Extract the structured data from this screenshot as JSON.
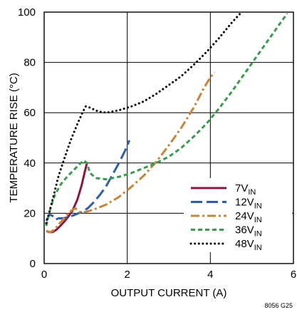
{
  "chart_data": {
    "type": "line",
    "title": "",
    "xlabel": "OUTPUT CURRENT (A)",
    "ylabel": "TEMPERATURE RISE (°C)",
    "xlim": [
      0,
      6
    ],
    "ylim": [
      0,
      100
    ],
    "x_ticks": [
      "0",
      "2",
      "4",
      "6"
    ],
    "y_ticks": [
      "0",
      "20",
      "40",
      "60",
      "80",
      "100"
    ],
    "grid": true,
    "legend_position": "lower-right",
    "footnote": "8056 G25",
    "series": [
      {
        "name": "7V",
        "name_sub": "IN",
        "color": "#8b1a3a",
        "dash": "solid",
        "points": [
          [
            0.05,
            13
          ],
          [
            0.12,
            12.5
          ],
          [
            0.2,
            12.5
          ],
          [
            0.3,
            13.5
          ],
          [
            0.42,
            15.5
          ],
          [
            0.55,
            18
          ],
          [
            0.68,
            21
          ],
          [
            0.8,
            25.5
          ],
          [
            0.9,
            31
          ],
          [
            0.97,
            36
          ],
          [
            1.03,
            40
          ]
        ]
      },
      {
        "name": "12V",
        "name_sub": "IN",
        "color": "#2e5fae",
        "dash": "long",
        "points": [
          [
            0.05,
            17
          ],
          [
            0.13,
            19.5
          ],
          [
            0.2,
            19
          ],
          [
            0.27,
            17.5
          ],
          [
            0.35,
            18
          ],
          [
            0.45,
            18
          ],
          [
            0.6,
            18.5
          ],
          [
            0.75,
            19.5
          ],
          [
            0.9,
            20.5
          ],
          [
            1.05,
            22
          ],
          [
            1.2,
            24.5
          ],
          [
            1.35,
            27.5
          ],
          [
            1.5,
            31
          ],
          [
            1.65,
            35.5
          ],
          [
            1.8,
            40
          ],
          [
            1.95,
            45
          ],
          [
            2.05,
            49
          ]
        ]
      },
      {
        "name": "24V",
        "name_sub": "IN",
        "color": "#c8843a",
        "dash": "dashdot",
        "points": [
          [
            0.05,
            13
          ],
          [
            0.15,
            12.5
          ],
          [
            0.25,
            13.5
          ],
          [
            0.35,
            15.5
          ],
          [
            0.45,
            17.5
          ],
          [
            0.55,
            19.5
          ],
          [
            0.65,
            21
          ],
          [
            0.75,
            22
          ],
          [
            0.85,
            20.5
          ],
          [
            1.0,
            20.5
          ],
          [
            1.2,
            21.5
          ],
          [
            1.5,
            23.5
          ],
          [
            1.8,
            26.5
          ],
          [
            2.1,
            30.5
          ],
          [
            2.4,
            35
          ],
          [
            2.7,
            40.5
          ],
          [
            3.0,
            47
          ],
          [
            3.3,
            54
          ],
          [
            3.6,
            62
          ],
          [
            3.85,
            70
          ],
          [
            4.0,
            74
          ],
          [
            4.1,
            76
          ]
        ]
      },
      {
        "name": "36V",
        "name_sub": "IN",
        "color": "#3a9a4e",
        "dash": "short",
        "points": [
          [
            0.05,
            15
          ],
          [
            0.15,
            22
          ],
          [
            0.25,
            27
          ],
          [
            0.4,
            31.5
          ],
          [
            0.55,
            34.5
          ],
          [
            0.7,
            37
          ],
          [
            0.85,
            39.5
          ],
          [
            0.95,
            41
          ],
          [
            1.03,
            40
          ],
          [
            1.1,
            36
          ],
          [
            1.25,
            34
          ],
          [
            1.5,
            33.5
          ],
          [
            1.8,
            34.5
          ],
          [
            2.1,
            36
          ],
          [
            2.4,
            38
          ],
          [
            2.7,
            40
          ],
          [
            3.0,
            42.5
          ],
          [
            3.3,
            46
          ],
          [
            3.6,
            50.5
          ],
          [
            3.9,
            55.5
          ],
          [
            4.2,
            61.5
          ],
          [
            4.5,
            68
          ],
          [
            4.8,
            75
          ],
          [
            5.1,
            82
          ],
          [
            5.4,
            89
          ],
          [
            5.7,
            96
          ],
          [
            5.85,
            99.5
          ]
        ]
      },
      {
        "name": "48V",
        "name_sub": "IN",
        "color": "#000000",
        "dash": "dotted",
        "points": [
          [
            0.05,
            16
          ],
          [
            0.15,
            22
          ],
          [
            0.25,
            28.5
          ],
          [
            0.35,
            35
          ],
          [
            0.5,
            42.5
          ],
          [
            0.65,
            49.5
          ],
          [
            0.8,
            55.5
          ],
          [
            0.92,
            60
          ],
          [
            1.0,
            62.5
          ],
          [
            1.1,
            62
          ],
          [
            1.3,
            60.5
          ],
          [
            1.5,
            60
          ],
          [
            1.8,
            61
          ],
          [
            2.1,
            62.5
          ],
          [
            2.4,
            64.5
          ],
          [
            2.7,
            67.5
          ],
          [
            3.0,
            71
          ],
          [
            3.3,
            74.5
          ],
          [
            3.6,
            79
          ],
          [
            3.9,
            84
          ],
          [
            4.2,
            89.5
          ],
          [
            4.5,
            95.5
          ],
          [
            4.75,
            100
          ]
        ]
      }
    ]
  }
}
